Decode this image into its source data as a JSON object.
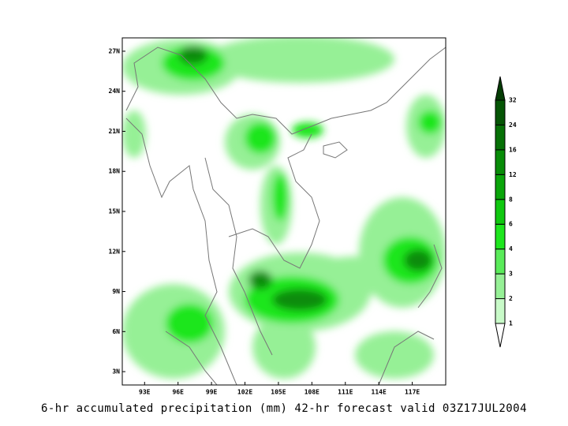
{
  "map": {
    "caption": "6-hr accumulated precipitation (mm) 42-hr forecast valid 03Z17JUL2004",
    "xlim": [
      91,
      120
    ],
    "ylim": [
      2,
      28
    ],
    "xticks": [
      {
        "value": 93,
        "label": "93E"
      },
      {
        "value": 96,
        "label": "96E"
      },
      {
        "value": 99,
        "label": "99E"
      },
      {
        "value": 102,
        "label": "102E"
      },
      {
        "value": 105,
        "label": "105E"
      },
      {
        "value": 108,
        "label": "108E"
      },
      {
        "value": 111,
        "label": "111E"
      },
      {
        "value": 114,
        "label": "114E"
      },
      {
        "value": 117,
        "label": "117E"
      }
    ],
    "yticks": [
      {
        "value": 27,
        "label": "27N"
      },
      {
        "value": 24,
        "label": "24N"
      },
      {
        "value": 21,
        "label": "21N"
      },
      {
        "value": 18,
        "label": "18N"
      },
      {
        "value": 15,
        "label": "15N"
      },
      {
        "value": 12,
        "label": "12N"
      },
      {
        "value": 9,
        "label": "9N"
      },
      {
        "value": 6,
        "label": "6N"
      },
      {
        "value": 3,
        "label": "3N"
      }
    ],
    "levels": [
      1,
      2,
      3,
      4,
      6,
      8,
      12,
      16,
      24,
      32
    ],
    "colors": [
      "#c8fac8",
      "#96f096",
      "#5aeb5a",
      "#1ee61e",
      "#10c810",
      "#0aa50a",
      "#088c08",
      "#067006",
      "#055505"
    ],
    "under_color": "#ffffff",
    "over_color": "#043c04"
  }
}
